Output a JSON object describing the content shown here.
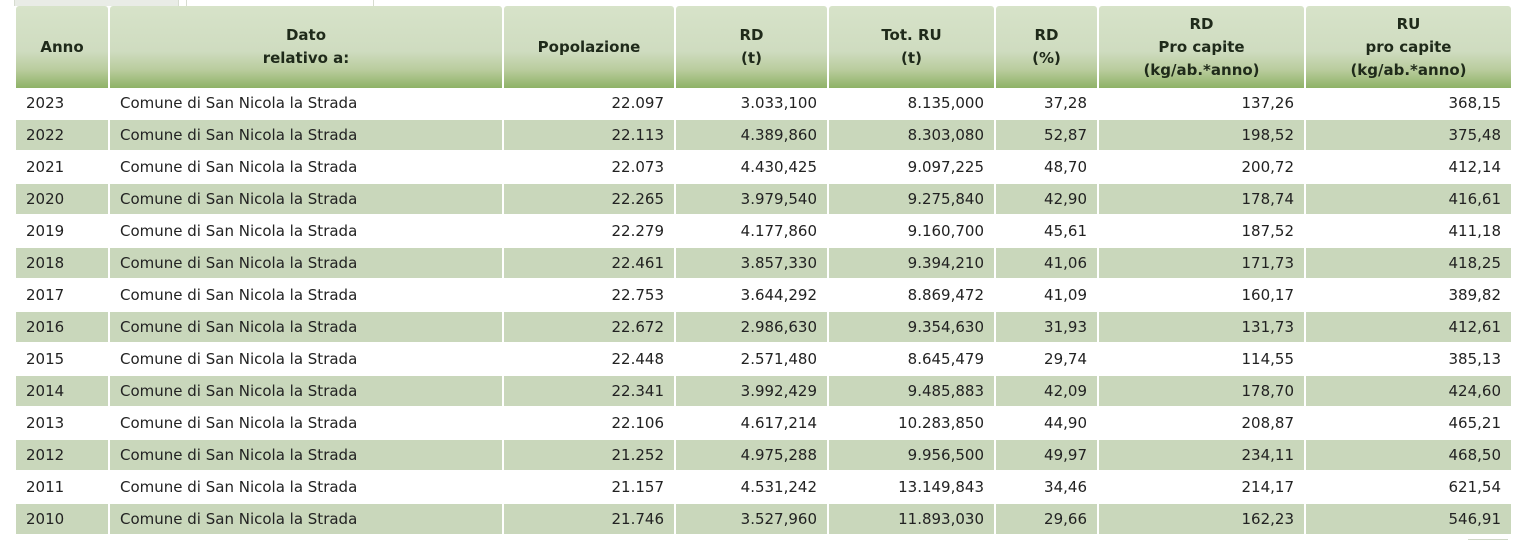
{
  "table": {
    "columns": [
      {
        "lines": [
          "Anno"
        ]
      },
      {
        "lines": [
          "Dato",
          "relativo a:"
        ]
      },
      {
        "lines": [
          "Popolazione"
        ]
      },
      {
        "lines": [
          "RD",
          "(t)"
        ]
      },
      {
        "lines": [
          "Tot. RU",
          "(t)"
        ]
      },
      {
        "lines": [
          "RD",
          "(%)"
        ]
      },
      {
        "lines": [
          "RD",
          "Pro capite",
          "(kg/ab.*anno)"
        ]
      },
      {
        "lines": [
          "RU",
          "pro capite",
          "(kg/ab.*anno)"
        ]
      }
    ],
    "rows": [
      [
        "2023",
        "Comune di San Nicola la Strada",
        "22.097",
        "3.033,100",
        "8.135,000",
        "37,28",
        "137,26",
        "368,15"
      ],
      [
        "2022",
        "Comune di San Nicola la Strada",
        "22.113",
        "4.389,860",
        "8.303,080",
        "52,87",
        "198,52",
        "375,48"
      ],
      [
        "2021",
        "Comune di San Nicola la Strada",
        "22.073",
        "4.430,425",
        "9.097,225",
        "48,70",
        "200,72",
        "412,14"
      ],
      [
        "2020",
        "Comune di San Nicola la Strada",
        "22.265",
        "3.979,540",
        "9.275,840",
        "42,90",
        "178,74",
        "416,61"
      ],
      [
        "2019",
        "Comune di San Nicola la Strada",
        "22.279",
        "4.177,860",
        "9.160,700",
        "45,61",
        "187,52",
        "411,18"
      ],
      [
        "2018",
        "Comune di San Nicola la Strada",
        "22.461",
        "3.857,330",
        "9.394,210",
        "41,06",
        "171,73",
        "418,25"
      ],
      [
        "2017",
        "Comune di San Nicola la Strada",
        "22.753",
        "3.644,292",
        "8.869,472",
        "41,09",
        "160,17",
        "389,82"
      ],
      [
        "2016",
        "Comune di San Nicola la Strada",
        "22.672",
        "2.986,630",
        "9.354,630",
        "31,93",
        "131,73",
        "412,61"
      ],
      [
        "2015",
        "Comune di San Nicola la Strada",
        "22.448",
        "2.571,480",
        "8.645,479",
        "29,74",
        "114,55",
        "385,13"
      ],
      [
        "2014",
        "Comune di San Nicola la Strada",
        "22.341",
        "3.992,429",
        "9.485,883",
        "42,09",
        "178,70",
        "424,60"
      ],
      [
        "2013",
        "Comune di San Nicola la Strada",
        "22.106",
        "4.617,214",
        "10.283,850",
        "44,90",
        "208,87",
        "465,21"
      ],
      [
        "2012",
        "Comune di San Nicola la Strada",
        "21.252",
        "4.975,288",
        "9.956,500",
        "49,97",
        "234,11",
        "468,50"
      ],
      [
        "2011",
        "Comune di San Nicola la Strada",
        "21.157",
        "4.531,242",
        "13.149,843",
        "34,46",
        "214,17",
        "621,54"
      ],
      [
        "2010",
        "Comune di San Nicola la Strada",
        "21.746",
        "3.527,960",
        "11.893,030",
        "29,66",
        "162,23",
        "546,91"
      ]
    ]
  }
}
